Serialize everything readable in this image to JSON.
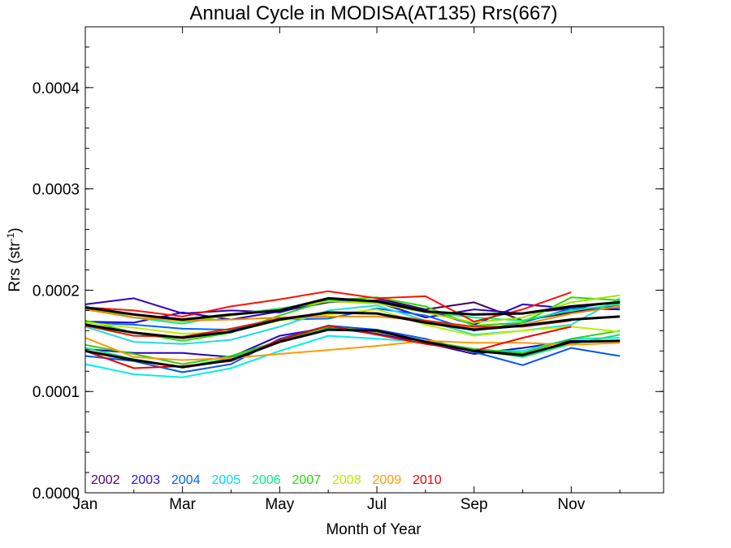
{
  "chart_data": {
    "type": "line",
    "title": "Annual Cycle in MODISA(AT135) Rrs(667)",
    "xlabel": "Month of Year",
    "ylabel": {
      "main": "Rrs (str",
      "sup": "-1",
      "close": ")"
    },
    "xlim": [
      1,
      12.9
    ],
    "ylim": [
      0,
      0.00046
    ],
    "x": [
      1,
      2,
      3,
      4,
      5,
      6,
      7,
      8,
      9,
      10,
      11,
      12
    ],
    "x_ticks": [
      {
        "value": 1,
        "label": "Jan"
      },
      {
        "value": 3,
        "label": "Mar"
      },
      {
        "value": 5,
        "label": "May"
      },
      {
        "value": 7,
        "label": "Jul"
      },
      {
        "value": 9,
        "label": "Sep"
      },
      {
        "value": 11,
        "label": "Nov"
      }
    ],
    "y_ticks": [
      {
        "value": 0.0,
        "label": "0.0000"
      },
      {
        "value": 0.0001,
        "label": "0.0001"
      },
      {
        "value": 0.0002,
        "label": "0.0002"
      },
      {
        "value": 0.0003,
        "label": "0.0003"
      },
      {
        "value": 0.0004,
        "label": "0.0004"
      }
    ],
    "grid": false,
    "legend_position": "bottom-left",
    "series": [
      {
        "name": "2002",
        "color": "#440055",
        "values": [
          null,
          null,
          null,
          null,
          null,
          null,
          0.000192,
          0.000181,
          0.000188,
          0.00017,
          0.000178,
          0.000186
        ]
      },
      {
        "name": "2003",
        "color": "#2200cc",
        "values": [
          0.000169,
          0.000168,
          0.000178,
          0.000171,
          0.000179,
          0.000188,
          0.00019,
          0.00018,
          0.000166,
          0.000186,
          0.000182,
          0.000181
        ]
      },
      {
        "name": "2003",
        "color": "#3300bb",
        "values": [
          0.000186,
          0.000192,
          0.000177,
          0.00018,
          0.000178,
          0.000191,
          0.000188,
          0.000173,
          0.000181,
          0.000177,
          0.000182,
          0.000189
        ]
      },
      {
        "name": "2003",
        "color": "#2a00c0",
        "values": [
          0.000142,
          0.000138,
          0.000138,
          0.000134,
          0.000155,
          0.000163,
          0.000157,
          0.000148,
          0.000137,
          0.000143,
          0.00015,
          0.00015
        ]
      },
      {
        "name": "2004",
        "color": "#0055ee",
        "values": [
          0.000135,
          0.00013,
          0.000119,
          0.000127,
          0.000152,
          0.000165,
          0.000161,
          0.000152,
          0.000139,
          0.000126,
          0.000143,
          0.000135
        ]
      },
      {
        "name": "2004",
        "color": "#0066ff",
        "values": [
          0.000168,
          0.000166,
          0.000162,
          0.000161,
          0.000171,
          0.000172,
          0.000182,
          0.000175,
          0.00016,
          0.000168,
          0.000182,
          0.000183
        ]
      },
      {
        "name": "2005",
        "color": "#00eeee",
        "values": [
          0.000127,
          0.000117,
          0.000114,
          0.000123,
          0.00014,
          0.000155,
          0.000152,
          0.000149,
          0.00014,
          0.00014,
          0.000152,
          0.000153
        ]
      },
      {
        "name": "2005",
        "color": "#22dddd",
        "values": [
          0.000164,
          0.000149,
          0.000147,
          0.000151,
          0.000164,
          0.00018,
          0.000185,
          0.00017,
          0.000156,
          0.00016,
          0.000166,
          0.000192
        ]
      },
      {
        "name": "2006",
        "color": "#00ee88",
        "values": [
          0.000184,
          0.000173,
          0.000167,
          0.000176,
          0.000182,
          0.000189,
          0.000188,
          0.000179,
          0.000173,
          0.00017,
          0.00018,
          0.000186
        ]
      },
      {
        "name": "2006",
        "color": "#11dd77",
        "values": [
          0.000143,
          0.000132,
          0.000124,
          0.000133,
          0.000149,
          0.000162,
          0.00016,
          0.000149,
          0.000141,
          0.000134,
          0.000147,
          0.000156
        ]
      },
      {
        "name": "2007",
        "color": "#22dd00",
        "values": [
          0.00017,
          0.000158,
          0.00015,
          0.000158,
          0.000175,
          0.00019,
          0.000193,
          0.000184,
          0.000165,
          0.000168,
          0.000193,
          0.00019
        ]
      },
      {
        "name": "2007",
        "color": "#33cc11",
        "values": [
          0.000146,
          0.000137,
          0.000127,
          0.000135,
          0.00015,
          0.000164,
          0.000159,
          0.00015,
          0.000142,
          0.000138,
          0.000152,
          0.00016
        ]
      },
      {
        "name": "2008",
        "color": "#bbee00",
        "values": [
          0.000168,
          0.000163,
          0.000157,
          0.000159,
          0.00017,
          0.000176,
          0.000181,
          0.000166,
          0.000155,
          0.00016,
          0.000164,
          0.000159
        ]
      },
      {
        "name": "2008",
        "color": "#aadd00",
        "values": [
          0.000181,
          0.000176,
          0.000169,
          0.000175,
          0.000181,
          0.000189,
          0.000187,
          0.000178,
          0.000168,
          0.000173,
          0.000188,
          0.000195
        ]
      },
      {
        "name": "2009",
        "color": "#ff9900",
        "values": [
          0.000153,
          0.000134,
          0.000131,
          0.000133,
          0.000137,
          0.000141,
          0.000145,
          0.00015,
          0.000148,
          0.000148,
          0.000146,
          0.000148
        ]
      },
      {
        "name": "2009",
        "color": "#ee8800",
        "values": [
          0.000181,
          0.000173,
          0.00017,
          0.000171,
          0.000173,
          0.000174,
          0.000174,
          0.00017,
          0.000162,
          0.000166,
          0.000177,
          0.000184
        ]
      },
      {
        "name": "2010",
        "color": "#ee0000",
        "values": [
          0.00014,
          0.000123,
          0.000125,
          0.00013,
          0.000151,
          0.000165,
          0.000156,
          0.000147,
          0.00014,
          0.000153,
          0.000164,
          null
        ]
      },
      {
        "name": "2010",
        "color": "#ff1100",
        "values": [
          0.000183,
          0.00018,
          0.000174,
          0.000184,
          0.000191,
          0.000199,
          0.000192,
          0.000194,
          0.000169,
          0.000181,
          0.000198,
          null
        ]
      },
      {
        "name": "2010",
        "color": "#dd2200",
        "values": [
          0.000165,
          0.000155,
          0.000154,
          0.000162,
          0.000172,
          0.000178,
          0.000177,
          0.00017,
          0.000164,
          0.000164,
          0.00017,
          null
        ]
      }
    ],
    "mean_series": {
      "color": "#000000",
      "lines": [
        [
          0.000183,
          0.000176,
          0.000171,
          0.000176,
          0.00018,
          0.000192,
          0.000189,
          0.000179,
          0.000176,
          0.000177,
          0.000184,
          0.000188
        ],
        [
          0.000166,
          0.000158,
          0.000153,
          0.000159,
          0.000171,
          0.000178,
          0.000177,
          0.000168,
          0.000161,
          0.000165,
          0.000171,
          0.000174
        ],
        [
          0.00014,
          0.000131,
          0.000124,
          0.000131,
          0.000149,
          0.000161,
          0.00016,
          0.000149,
          0.00014,
          0.000136,
          0.000149,
          0.00015
        ]
      ]
    },
    "legend": [
      {
        "label": "2002",
        "color": "#550066"
      },
      {
        "label": "2003",
        "color": "#3311cc"
      },
      {
        "label": "2004",
        "color": "#0066ee"
      },
      {
        "label": "2005",
        "color": "#00ddee"
      },
      {
        "label": "2006",
        "color": "#00ee88"
      },
      {
        "label": "2007",
        "color": "#22dd00"
      },
      {
        "label": "2008",
        "color": "#bbee00"
      },
      {
        "label": "2009",
        "color": "#ff9900"
      },
      {
        "label": "2010",
        "color": "#ee0000"
      }
    ]
  }
}
